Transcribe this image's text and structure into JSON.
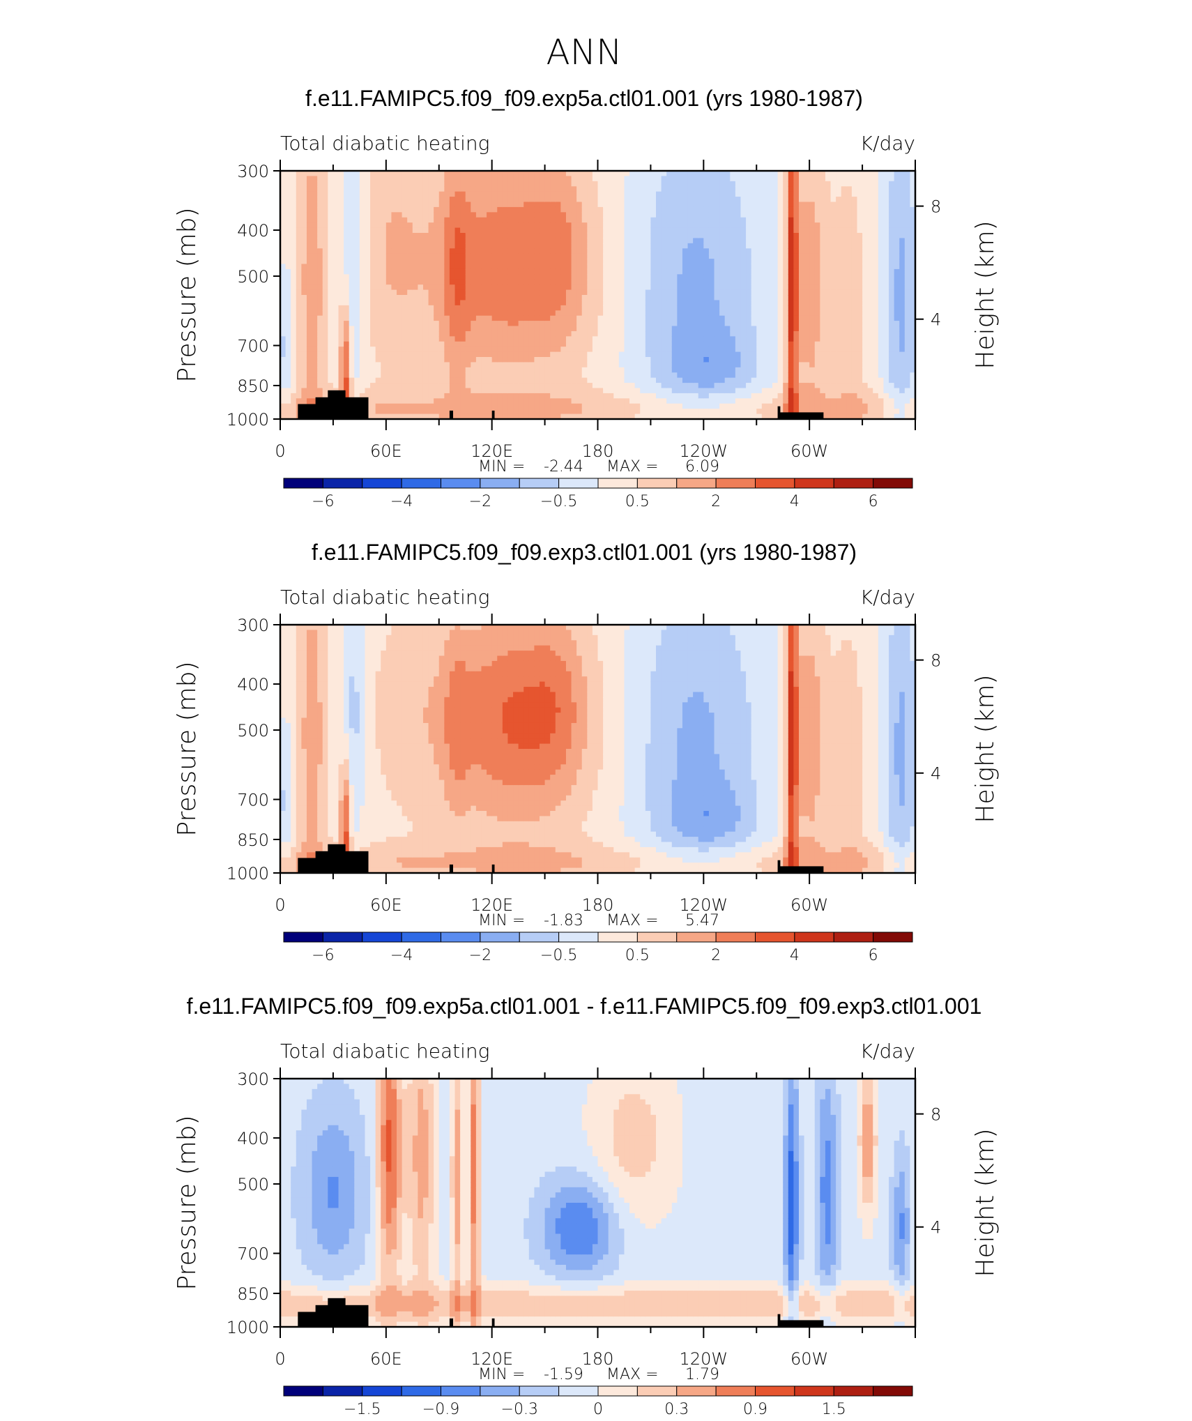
{
  "figure": {
    "season": "ANN"
  },
  "colors": {
    "panel_scale": [
      "#00007a",
      "#0a24a8",
      "#1546d6",
      "#2f6ae6",
      "#5a8cf0",
      "#8aaef2",
      "#b6cdf6",
      "#dce8fa",
      "#fde9dc",
      "#fbcdb5",
      "#f6a786",
      "#ef7e58",
      "#e6552f",
      "#cf361c",
      "#ae1f12",
      "#820a06"
    ],
    "terrain": "#000000"
  },
  "chart_data": [
    {
      "type": "heatmap",
      "title": "f.e11.FAMIPC5.f09_f09.exp5a.ctl01.001 (yrs 1980-1987)",
      "left_label": "Total diabatic heating",
      "right_label": "K/day",
      "ylabel": "Pressure (mb)",
      "y2label": "Height (km)",
      "y_ticks": [
        "300",
        "400",
        "500",
        "700",
        "850",
        "1000"
      ],
      "y2_ticks": [
        "8",
        "4"
      ],
      "x_ticks": [
        "0",
        "60E",
        "120E",
        "180",
        "120W",
        "60W"
      ],
      "xlim": [
        0,
        360
      ],
      "ylim": [
        1000,
        300
      ],
      "min_label": "MIN =",
      "min_value": "-2.44",
      "max_label": "MAX =",
      "max_value": "6.09",
      "colorbar_labels": [
        "-6",
        "-4",
        "-2",
        "-0.5",
        "0.5",
        "2",
        "4",
        "6"
      ],
      "field": "control"
    },
    {
      "type": "heatmap",
      "title": "f.e11.FAMIPC5.f09_f09.exp3.ctl01.001 (yrs 1980-1987)",
      "left_label": "Total diabatic heating",
      "right_label": "K/day",
      "ylabel": "Pressure (mb)",
      "y2label": "Height (km)",
      "y_ticks": [
        "300",
        "400",
        "500",
        "700",
        "850",
        "1000"
      ],
      "y2_ticks": [
        "8",
        "4"
      ],
      "x_ticks": [
        "0",
        "60E",
        "120E",
        "180",
        "120W",
        "60W"
      ],
      "xlim": [
        0,
        360
      ],
      "ylim": [
        1000,
        300
      ],
      "min_label": "MIN =",
      "min_value": "-1.83",
      "max_label": "MAX =",
      "max_value": "5.47",
      "colorbar_labels": [
        "-6",
        "-4",
        "-2",
        "-0.5",
        "0.5",
        "2",
        "4",
        "6"
      ],
      "field": "control2"
    },
    {
      "type": "heatmap",
      "title": "f.e11.FAMIPC5.f09_f09.exp5a.ctl01.001 - f.e11.FAMIPC5.f09_f09.exp3.ctl01.001",
      "left_label": "Total diabatic heating",
      "right_label": "K/day",
      "ylabel": "Pressure (mb)",
      "y2label": "Height (km)",
      "y_ticks": [
        "300",
        "400",
        "500",
        "700",
        "850",
        "1000"
      ],
      "y2_ticks": [
        "8",
        "4"
      ],
      "x_ticks": [
        "0",
        "60E",
        "120E",
        "180",
        "120W",
        "60W"
      ],
      "xlim": [
        0,
        360
      ],
      "ylim": [
        1000,
        300
      ],
      "min_label": "MIN =",
      "min_value": "-1.59",
      "max_label": "MAX =",
      "max_value": "1.79",
      "colorbar_labels": [
        "-1.5",
        "-0.9",
        "-0.3",
        "0",
        "0.3",
        "0.9",
        "1.5"
      ],
      "field": "difference"
    }
  ]
}
